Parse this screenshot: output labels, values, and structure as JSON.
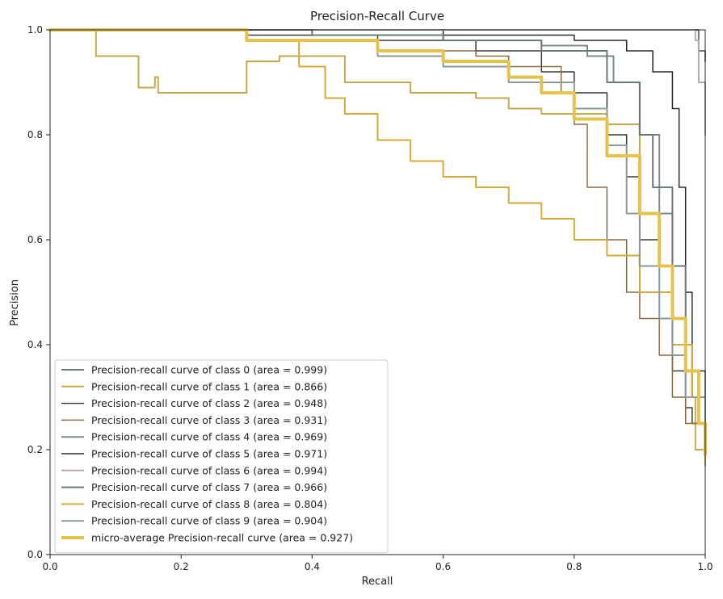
{
  "chart_data": {
    "type": "line",
    "title": "Precision-Recall Curve",
    "xlabel": "Recall",
    "ylabel": "Precision",
    "xlim": [
      0.0,
      1.0
    ],
    "ylim": [
      0.0,
      1.0
    ],
    "x_ticks": [
      "0.0",
      "0.2",
      "0.4",
      "0.6",
      "0.8",
      "1.0"
    ],
    "y_ticks": [
      "0.0",
      "0.2",
      "0.4",
      "0.6",
      "0.8",
      "1.0"
    ],
    "grid": false,
    "legend_position": "lower-left",
    "series": [
      {
        "name": "Precision-recall curve of class 0 (area = 0.999)",
        "color": "#6b7b7b",
        "width": 2,
        "x": [
          0,
          0.2,
          0.5,
          0.8,
          0.98,
          0.99,
          1.0
        ],
        "y": [
          1.0,
          1.0,
          1.0,
          1.0,
          1.0,
          0.96,
          0.94
        ]
      },
      {
        "name": "Precision-recall curve of class 1 (area = 0.866)",
        "color": "#c8a84a",
        "width": 2,
        "x": [
          0,
          0.07,
          0.135,
          0.16,
          0.165,
          0.3,
          0.35,
          0.4,
          0.45,
          0.55,
          0.6,
          0.65,
          0.7,
          0.75,
          0.8,
          0.85,
          0.9,
          0.95,
          0.97,
          0.985,
          1.0
        ],
        "y": [
          1.0,
          0.95,
          0.89,
          0.91,
          0.88,
          0.94,
          0.95,
          0.95,
          0.9,
          0.88,
          0.88,
          0.87,
          0.85,
          0.84,
          0.84,
          0.82,
          0.55,
          0.4,
          0.3,
          0.2,
          0.17
        ]
      },
      {
        "name": "Precision-recall curve of class 2 (area = 0.948)",
        "color": "#3a3a3a",
        "width": 1.5,
        "x": [
          0,
          0.3,
          0.5,
          0.65,
          0.75,
          0.8,
          0.85,
          0.88,
          0.9,
          0.93,
          0.95,
          0.97,
          0.98,
          1.0
        ],
        "y": [
          1.0,
          0.99,
          0.98,
          0.96,
          0.92,
          0.88,
          0.8,
          0.72,
          0.6,
          0.45,
          0.35,
          0.28,
          0.25,
          0.2
        ]
      },
      {
        "name": "Precision-recall curve of class 3 (area = 0.931)",
        "color": "#8a6a40",
        "width": 1.5,
        "x": [
          0,
          0.3,
          0.5,
          0.65,
          0.7,
          0.78,
          0.8,
          0.82,
          0.85,
          0.88,
          0.9,
          0.93,
          0.95,
          0.97,
          1.0
        ],
        "y": [
          1.0,
          0.98,
          0.96,
          0.95,
          0.93,
          0.88,
          0.82,
          0.7,
          0.6,
          0.5,
          0.45,
          0.38,
          0.3,
          0.25,
          0.18
        ]
      },
      {
        "name": "Precision-recall curve of class 4 (area = 0.969)",
        "color": "#7a8a8a",
        "width": 2,
        "x": [
          0,
          0.4,
          0.6,
          0.75,
          0.82,
          0.86,
          0.9,
          0.93,
          0.95,
          0.97,
          0.98,
          1.0
        ],
        "y": [
          1.0,
          0.99,
          0.98,
          0.97,
          0.95,
          0.9,
          0.8,
          0.65,
          0.45,
          0.35,
          0.3,
          0.2
        ]
      },
      {
        "name": "Precision-recall curve of class 5 (area = 0.971)",
        "color": "#2a2a2a",
        "width": 1.5,
        "x": [
          0,
          0.4,
          0.6,
          0.8,
          0.88,
          0.92,
          0.95,
          0.96,
          0.97,
          0.98,
          1.0
        ],
        "y": [
          1.0,
          1.0,
          0.99,
          0.98,
          0.96,
          0.92,
          0.85,
          0.7,
          0.5,
          0.35,
          0.18
        ]
      },
      {
        "name": "Precision-recall curve of class 6 (area = 0.994)",
        "color": "#b8a8b0",
        "width": 2,
        "x": [
          0,
          0.5,
          0.8,
          0.9,
          0.98,
          0.985,
          0.99,
          1.0
        ],
        "y": [
          1.0,
          1.0,
          1.0,
          1.0,
          1.0,
          0.98,
          0.9,
          0.8
        ]
      },
      {
        "name": "Precision-recall curve of class 7 (area = 0.966)",
        "color": "#6a7a7a",
        "width": 2,
        "x": [
          0,
          0.4,
          0.6,
          0.75,
          0.85,
          0.9,
          0.92,
          0.95,
          0.97,
          0.98,
          1.0
        ],
        "y": [
          1.0,
          0.99,
          0.98,
          0.96,
          0.9,
          0.8,
          0.7,
          0.55,
          0.4,
          0.3,
          0.2
        ]
      },
      {
        "name": "Precision-recall curve of class 8 (area = 0.804)",
        "color": "#d4aa3a",
        "width": 2,
        "x": [
          0,
          0.3,
          0.38,
          0.42,
          0.45,
          0.5,
          0.55,
          0.6,
          0.65,
          0.7,
          0.75,
          0.8,
          0.85,
          0.9,
          0.95,
          0.98,
          1.0
        ],
        "y": [
          1.0,
          0.98,
          0.93,
          0.87,
          0.84,
          0.79,
          0.75,
          0.72,
          0.7,
          0.67,
          0.64,
          0.6,
          0.57,
          0.5,
          0.4,
          0.3,
          0.17
        ]
      },
      {
        "name": "Precision-recall curve of class 9 (area = 0.904)",
        "color": "#8a9a9a",
        "width": 2,
        "x": [
          0,
          0.3,
          0.5,
          0.6,
          0.7,
          0.8,
          0.85,
          0.88,
          0.9,
          0.93,
          0.95,
          0.97,
          1.0
        ],
        "y": [
          1.0,
          0.98,
          0.95,
          0.93,
          0.9,
          0.85,
          0.78,
          0.65,
          0.55,
          0.45,
          0.38,
          0.3,
          0.2
        ]
      },
      {
        "name": "micro-average Precision-recall curve (area = 0.927)",
        "color": "#e6c24a",
        "width": 4,
        "x": [
          0,
          0.3,
          0.5,
          0.6,
          0.7,
          0.75,
          0.8,
          0.85,
          0.9,
          0.93,
          0.95,
          0.97,
          0.99,
          1.0
        ],
        "y": [
          1.0,
          0.98,
          0.96,
          0.94,
          0.91,
          0.88,
          0.83,
          0.76,
          0.65,
          0.55,
          0.45,
          0.35,
          0.25,
          0.19
        ]
      }
    ]
  }
}
